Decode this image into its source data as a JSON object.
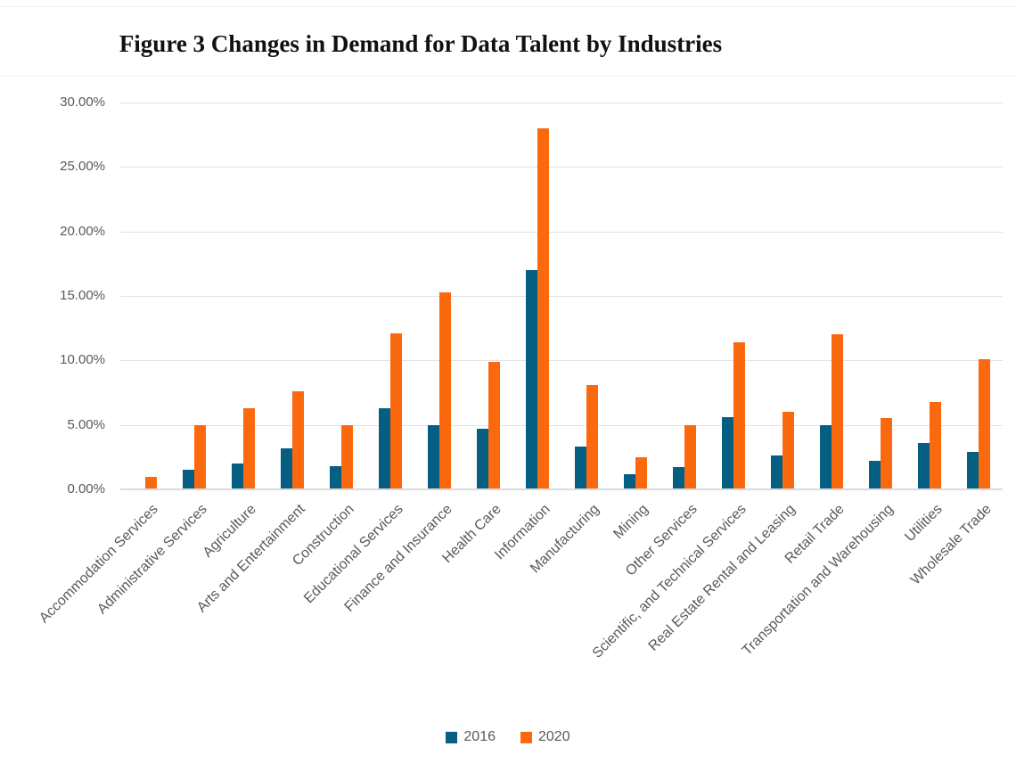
{
  "figure": {
    "title": "Figure 3 Changes in Demand for Data Talent by Industries"
  },
  "colors": {
    "series_2016": "#075E83",
    "series_2020": "#FB690E",
    "axis_text": "#595959",
    "gridline": "#E2E2E2",
    "axis_line": "#DBDBDB"
  },
  "y_axis": {
    "tick_labels": [
      "30.00%",
      "25.00%",
      "20.00%",
      "15.00%",
      "10.00%",
      "5.00%",
      "0.00%"
    ],
    "tick_values": [
      30,
      25,
      20,
      15,
      10,
      5,
      0
    ]
  },
  "legend": {
    "items": [
      {
        "label": "2016",
        "color": "#075E83"
      },
      {
        "label": "2020",
        "color": "#FB690E"
      }
    ],
    "position": "bottom"
  },
  "chart_data": {
    "type": "bar",
    "title": "Figure 3 Changes in Demand for Data Talent by Industries",
    "xlabel": "",
    "ylabel": "",
    "ylim": [
      0,
      30
    ],
    "y_tick_step": 5,
    "y_unit": "percent",
    "grid": true,
    "legend_position": "bottom",
    "categories": [
      "Accommodation Services",
      "Administrative Services",
      "Agriculture",
      "Arts and Entertainment",
      "Construction",
      "Educational Services",
      "Finance and Insurance",
      "Health Care",
      "Information",
      "Manufacturing",
      "Mining",
      "Other Services",
      "Scientific, and Technical Services",
      "Real Estate Rental and Leasing",
      "Retail Trade",
      "Transportation and Warehousing",
      "Utilities",
      "Wholesale Trade"
    ],
    "series": [
      {
        "name": "2016",
        "color": "#075E83",
        "values": [
          0.0,
          1.5,
          2.0,
          3.2,
          1.8,
          6.3,
          5.0,
          4.7,
          17.0,
          3.3,
          1.2,
          1.7,
          5.6,
          2.6,
          5.0,
          2.2,
          3.6,
          2.9
        ]
      },
      {
        "name": "2020",
        "color": "#FB690E",
        "values": [
          1.0,
          5.0,
          6.3,
          7.6,
          5.0,
          12.1,
          15.3,
          9.9,
          28.0,
          8.1,
          2.5,
          5.0,
          11.4,
          6.0,
          12.0,
          5.5,
          6.8,
          10.1
        ]
      }
    ]
  }
}
